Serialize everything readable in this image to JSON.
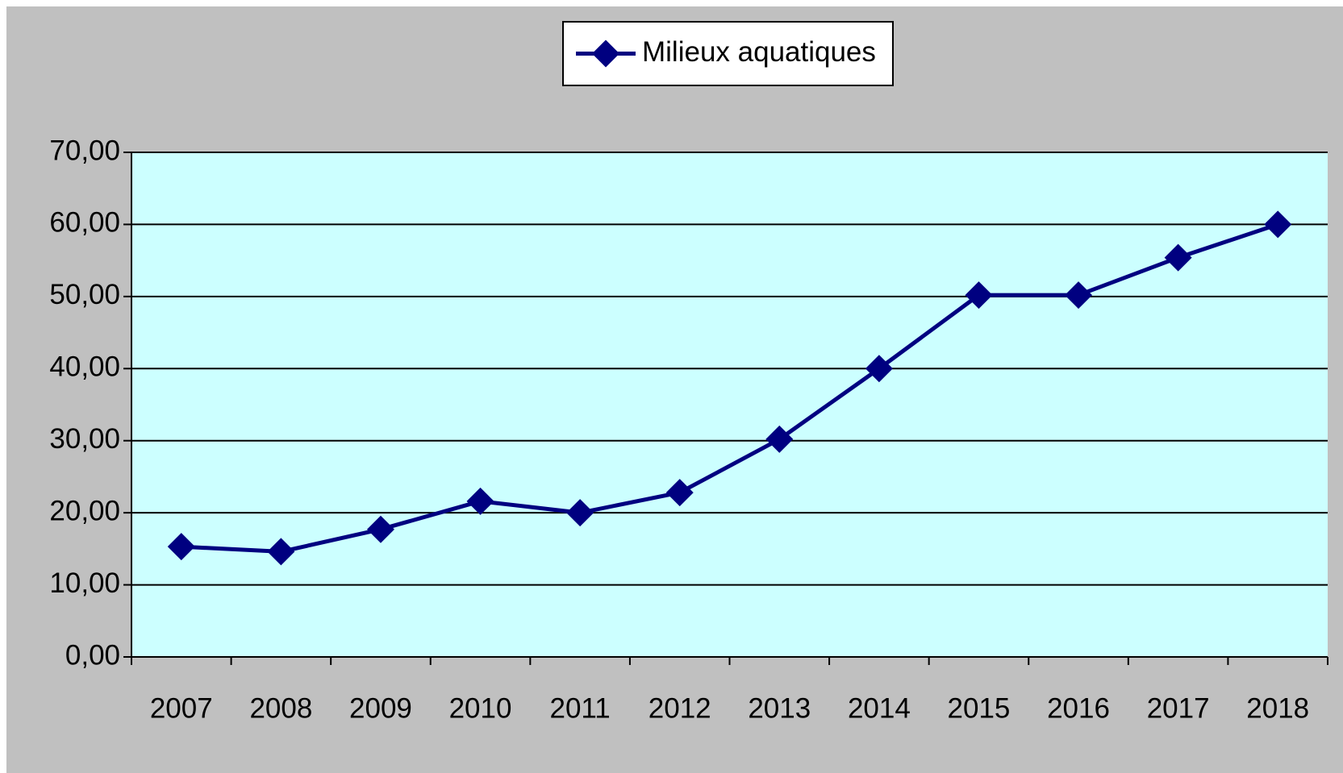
{
  "chart_data": {
    "type": "line",
    "categories": [
      "2007",
      "2008",
      "2009",
      "2010",
      "2011",
      "2012",
      "2013",
      "2014",
      "2015",
      "2016",
      "2017",
      "2018"
    ],
    "series": [
      {
        "name": "Milieux aquatiques",
        "color": "#000080",
        "values": [
          15.3,
          14.6,
          17.7,
          21.6,
          20.0,
          22.8,
          30.2,
          40.0,
          50.2,
          50.2,
          55.4,
          60.0
        ]
      }
    ],
    "ylim": [
      0,
      70
    ],
    "yticks": [
      {
        "value": 0,
        "label": "0,00"
      },
      {
        "value": 10,
        "label": "10,00"
      },
      {
        "value": 20,
        "label": "20,00"
      },
      {
        "value": 30,
        "label": "30,00"
      },
      {
        "value": 40,
        "label": "40,00"
      },
      {
        "value": 50,
        "label": "50,00"
      },
      {
        "value": 60,
        "label": "60,00"
      },
      {
        "value": 70,
        "label": "70,00"
      }
    ],
    "grid": true,
    "legend": "top",
    "plot_background": "#ccffff"
  }
}
